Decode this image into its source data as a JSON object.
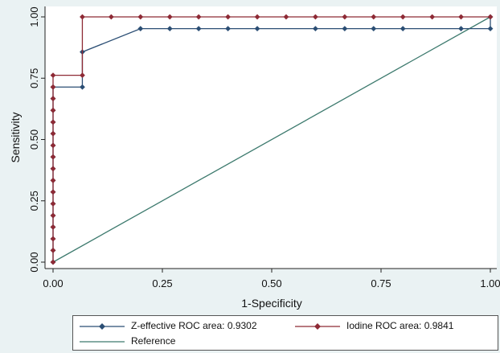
{
  "chart_data": {
    "type": "line",
    "xlabel": "1-Specificity",
    "ylabel": "Sensitivity",
    "xlim": [
      0,
      1
    ],
    "ylim": [
      0,
      1
    ],
    "x_ticks": [
      "0.00",
      "0.25",
      "0.50",
      "0.75",
      "1.00"
    ],
    "y_ticks": [
      "0.00",
      "0.25",
      "0.50",
      "0.75",
      "1.00"
    ],
    "grid": false,
    "legend_position": "bottom",
    "series": [
      {
        "name": "Z-effective ROC area: 0.9302",
        "color": "#2b4e74",
        "marker": "diamond",
        "points": [
          [
            0,
            0
          ],
          [
            0,
            0.048
          ],
          [
            0,
            0.095
          ],
          [
            0,
            0.143
          ],
          [
            0,
            0.19
          ],
          [
            0,
            0.238
          ],
          [
            0,
            0.286
          ],
          [
            0,
            0.333
          ],
          [
            0,
            0.381
          ],
          [
            0,
            0.429
          ],
          [
            0,
            0.476
          ],
          [
            0,
            0.524
          ],
          [
            0,
            0.571
          ],
          [
            0,
            0.619
          ],
          [
            0,
            0.667
          ],
          [
            0,
            0.714
          ],
          [
            0.067,
            0.714
          ],
          [
            0.067,
            0.857
          ],
          [
            0.2,
            0.952
          ],
          [
            0.267,
            0.952
          ],
          [
            0.333,
            0.952
          ],
          [
            0.4,
            0.952
          ],
          [
            0.467,
            0.952
          ],
          [
            0.6,
            0.952
          ],
          [
            0.667,
            0.952
          ],
          [
            0.733,
            0.952
          ],
          [
            0.8,
            0.952
          ],
          [
            0.933,
            0.952
          ],
          [
            1,
            0.952
          ],
          [
            1,
            1
          ]
        ]
      },
      {
        "name": "Iodine ROC area: 0.9841",
        "color": "#8e2a35",
        "marker": "diamond",
        "points": [
          [
            0,
            0
          ],
          [
            0,
            0.048
          ],
          [
            0,
            0.095
          ],
          [
            0,
            0.143
          ],
          [
            0,
            0.19
          ],
          [
            0,
            0.238
          ],
          [
            0,
            0.286
          ],
          [
            0,
            0.333
          ],
          [
            0,
            0.381
          ],
          [
            0,
            0.429
          ],
          [
            0,
            0.476
          ],
          [
            0,
            0.524
          ],
          [
            0,
            0.571
          ],
          [
            0,
            0.619
          ],
          [
            0,
            0.667
          ],
          [
            0,
            0.714
          ],
          [
            0,
            0.762
          ],
          [
            0.067,
            0.762
          ],
          [
            0.067,
            1
          ],
          [
            0.133,
            1
          ],
          [
            0.2,
            1
          ],
          [
            0.267,
            1
          ],
          [
            0.333,
            1
          ],
          [
            0.4,
            1
          ],
          [
            0.467,
            1
          ],
          [
            0.533,
            1
          ],
          [
            0.6,
            1
          ],
          [
            0.667,
            1
          ],
          [
            0.733,
            1
          ],
          [
            0.8,
            1
          ],
          [
            0.867,
            1
          ],
          [
            0.933,
            1
          ],
          [
            1,
            1
          ]
        ]
      },
      {
        "name": "Reference",
        "color": "#3d7a6e",
        "marker": "none",
        "points": [
          [
            0,
            0
          ],
          [
            1,
            1
          ]
        ]
      }
    ]
  }
}
